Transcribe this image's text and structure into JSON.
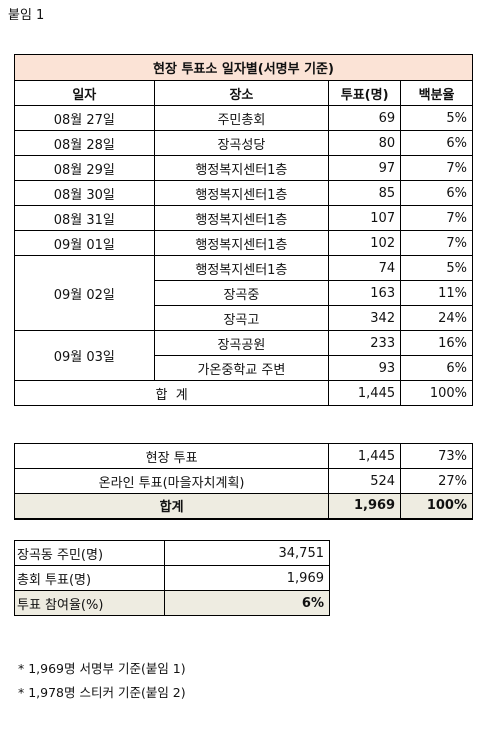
{
  "attachment_label": "붙임 1",
  "table1": {
    "title": "현장 투표소 일자별(서명부 기준)",
    "headers": [
      "일자",
      "장소",
      "투표(명)",
      "백분율"
    ],
    "rows": [
      {
        "date": "08월 27일",
        "place": "주민총회",
        "votes": "69",
        "pct": "5%"
      },
      {
        "date": "08월 28일",
        "place": "장곡성당",
        "votes": "80",
        "pct": "6%"
      },
      {
        "date": "08월 29일",
        "place": "행정복지센터1층",
        "votes": "97",
        "pct": "7%"
      },
      {
        "date": "08월 30일",
        "place": "행정복지센터1층",
        "votes": "85",
        "pct": "6%"
      },
      {
        "date": "08월 31일",
        "place": "행정복지센터1층",
        "votes": "107",
        "pct": "7%"
      },
      {
        "date": "09월 01일",
        "place": "행정복지센터1층",
        "votes": "102",
        "pct": "7%"
      },
      {
        "date": "09월 02일",
        "place": "행정복지센터1층",
        "votes": "74",
        "pct": "5%"
      },
      {
        "place": "장곡중",
        "votes": "163",
        "pct": "11%"
      },
      {
        "place": "장곡고",
        "votes": "342",
        "pct": "24%"
      },
      {
        "date": "09월 03일",
        "place": "장곡공원",
        "votes": "233",
        "pct": "16%"
      },
      {
        "place": "가온중학교 주변",
        "votes": "93",
        "pct": "6%"
      }
    ],
    "total": {
      "label": "합  계",
      "votes": "1,445",
      "pct": "100%"
    }
  },
  "table2": {
    "rows": [
      {
        "label": "현장 투표",
        "votes": "1,445",
        "pct": "73%"
      },
      {
        "label": "온라인 투표(마을자치계획)",
        "votes": "524",
        "pct": "27%"
      }
    ],
    "total": {
      "label": "합계",
      "votes": "1,969",
      "pct": "100%"
    }
  },
  "table3": {
    "rows": [
      {
        "label": "장곡동 주민(명)",
        "value": "34,751"
      },
      {
        "label": "총회 투표(명)",
        "value": "1,969"
      },
      {
        "label": "투표 참여율(%)",
        "value": "6%"
      }
    ]
  },
  "notes": [
    "* 1,969명 서명부 기준(붙임 1)",
    "* 1,978명 스티커 기준(붙임 2)"
  ]
}
